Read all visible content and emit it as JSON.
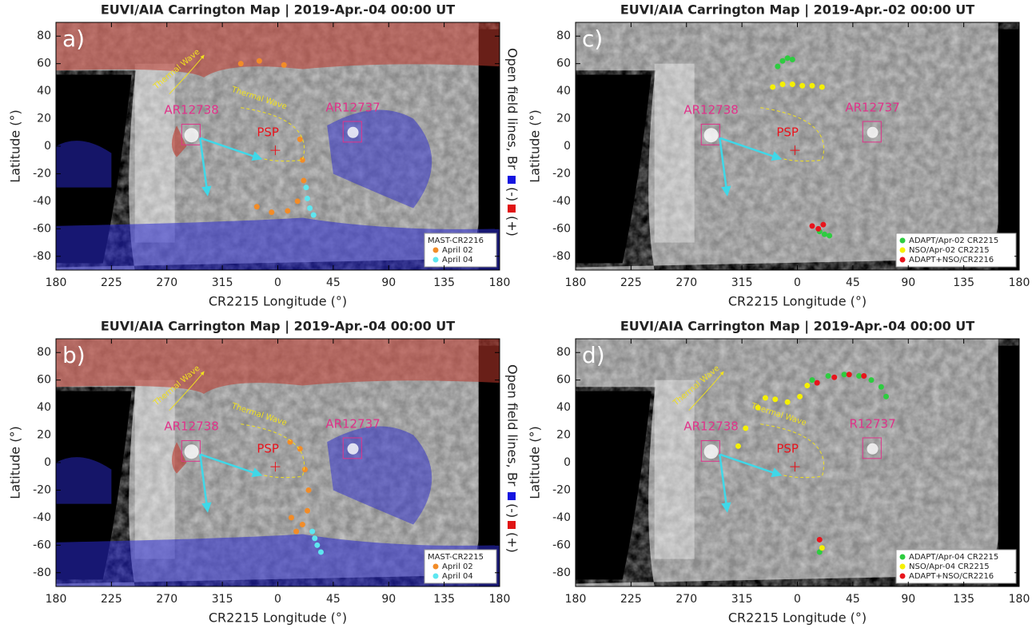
{
  "chart_data": [
    {
      "type": "map",
      "title": "EUVI/AIA Carrington Map | 2019-Apr.-04 00:00 UT",
      "x_label": "CR2215 Longitude (°)",
      "y_label": "Latitude (°)",
      "xlim": [
        180,
        540
      ],
      "ylim": [
        -90,
        90
      ],
      "xticks": [
        180,
        225,
        270,
        315,
        {
          "value": 360,
          "label": "0"
        },
        {
          "value": 405,
          "label": "45"
        },
        {
          "value": 450,
          "label": "90"
        },
        {
          "value": 495,
          "label": "135"
        },
        {
          "value": 540,
          "label": "180"
        }
      ],
      "yticks": [
        -80,
        -60,
        -40,
        -20,
        0,
        20,
        40,
        60,
        80
      ],
      "open_field_overlay": true,
      "side_label": "Open field lines, Br",
      "side_neg": "(-)",
      "side_pos": "(+)",
      "annotations": {
        "panel_label": "a)",
        "ar_left": "AR12738",
        "ar_right": "AR12737",
        "psp": "PSP",
        "wave_1": "Thermal Wave",
        "wave_2": "Thermal Wave"
      },
      "legend_title": "MAST-CR2216",
      "legend_loc": "lower right",
      "series": [
        {
          "name": "April 02",
          "color": "#f28c28",
          "x": [
            330,
            345,
            365,
            378,
            380,
            381,
            376,
            368,
            355,
            343
          ],
          "y": [
            60,
            62,
            59,
            5,
            -10,
            -25,
            -40,
            -47,
            -48,
            -44
          ]
        },
        {
          "name": "April 04",
          "color": "#5ee6f0",
          "x": [
            383,
            384,
            386,
            389
          ],
          "y": [
            -30,
            -38,
            -45,
            -50
          ]
        }
      ]
    },
    {
      "type": "map",
      "title": "EUVI/AIA Carrington Map | 2019-Apr.-04 00:00 UT",
      "x_label": "CR2215 Longitude (°)",
      "y_label": "Latitude (°)",
      "xlim": [
        180,
        540
      ],
      "ylim": [
        -90,
        90
      ],
      "xticks": [
        180,
        225,
        270,
        315,
        {
          "value": 360,
          "label": "0"
        },
        {
          "value": 405,
          "label": "45"
        },
        {
          "value": 450,
          "label": "90"
        },
        {
          "value": 495,
          "label": "135"
        },
        {
          "value": 540,
          "label": "180"
        }
      ],
      "yticks": [
        -80,
        -60,
        -40,
        -20,
        0,
        20,
        40,
        60,
        80
      ],
      "open_field_overlay": true,
      "side_label": "Open field lines, Br",
      "side_neg": "(-)",
      "side_pos": "(+)",
      "annotations": {
        "panel_label": "b)",
        "ar_left": "AR12738",
        "ar_right": "AR12737",
        "psp": "PSP",
        "wave_1": "Thermal Wave",
        "wave_2": "Thermal Wave"
      },
      "legend_title": "MAST-CR2215",
      "legend_loc": "lower right",
      "series": [
        {
          "name": "April 02",
          "color": "#f28c28",
          "x": [
            370,
            378,
            382,
            385,
            384,
            380,
            375,
            371
          ],
          "y": [
            15,
            10,
            -5,
            -20,
            -35,
            -45,
            -50,
            -40
          ]
        },
        {
          "name": "April 04",
          "color": "#5ee6f0",
          "x": [
            388,
            390,
            392,
            395
          ],
          "y": [
            -50,
            -55,
            -60,
            -65
          ]
        }
      ]
    },
    {
      "type": "map",
      "title": "EUVI/AIA Carrington Map | 2019-Apr.-02 00:00 UT",
      "x_label": "CR2215 Longitude (°)",
      "y_label": "Latitude (°)",
      "xlim": [
        180,
        540
      ],
      "ylim": [
        -90,
        90
      ],
      "xticks": [
        180,
        225,
        270,
        315,
        {
          "value": 360,
          "label": "0"
        },
        {
          "value": 405,
          "label": "45"
        },
        {
          "value": 450,
          "label": "90"
        },
        {
          "value": 495,
          "label": "135"
        },
        {
          "value": 540,
          "label": "180"
        }
      ],
      "yticks": [
        -80,
        -60,
        -40,
        -20,
        0,
        20,
        40,
        60,
        80
      ],
      "open_field_overlay": false,
      "annotations": {
        "panel_label": "c)",
        "ar_left": "AR12738",
        "ar_right": "AR12737",
        "psp": "PSP"
      },
      "legend_loc": "lower right",
      "series": [
        {
          "name": "ADAPT/Apr-02 CR2215",
          "color": "#2ecc40",
          "x": [
            344,
            348,
            352,
            356,
            378,
            382,
            386
          ],
          "y": [
            58,
            62,
            64,
            63,
            -62,
            -64,
            -65
          ]
        },
        {
          "name": "NSO/Apr-02 CR2215",
          "color": "#f5f000",
          "x": [
            340,
            348,
            356,
            364,
            372,
            380
          ],
          "y": [
            43,
            45,
            45,
            44,
            44,
            43
          ]
        },
        {
          "name": "ADAPT+NSO/CR2216",
          "color": "#e8141c",
          "x": [
            372,
            377,
            381
          ],
          "y": [
            -58,
            -60,
            -57
          ]
        }
      ]
    },
    {
      "type": "map",
      "title": "EUVI/AIA Carrington Map | 2019-Apr.-04 00:00 UT",
      "x_label": "CR2215 Longitude (°)",
      "y_label": "Latitude (°)",
      "xlim": [
        180,
        540
      ],
      "ylim": [
        -90,
        90
      ],
      "xticks": [
        180,
        225,
        270,
        315,
        {
          "value": 360,
          "label": "0"
        },
        {
          "value": 405,
          "label": "45"
        },
        {
          "value": 450,
          "label": "90"
        },
        {
          "value": 495,
          "label": "135"
        },
        {
          "value": 540,
          "label": "180"
        }
      ],
      "yticks": [
        -80,
        -60,
        -40,
        -20,
        0,
        20,
        40,
        60,
        80
      ],
      "open_field_overlay": false,
      "annotations": {
        "panel_label": "d)",
        "ar_left": "AR12738",
        "ar_right": "R12737",
        "psp": "PSP",
        "wave_1": "Thermal Wave",
        "wave_2": "Thermal Wave"
      },
      "legend_loc": "lower right",
      "series": [
        {
          "name": "ADAPT/Apr-04 CR2215",
          "color": "#2ecc40",
          "x": [
            372,
            385,
            398,
            410,
            420,
            428,
            432,
            378
          ],
          "y": [
            60,
            63,
            64,
            63,
            60,
            55,
            48,
            -65
          ]
        },
        {
          "name": "NSO/Apr-04 CR2215",
          "color": "#f5f000",
          "x": [
            328,
            334,
            342,
            352,
            362,
            368,
            318,
            312,
            380
          ],
          "y": [
            40,
            47,
            46,
            44,
            48,
            56,
            25,
            12,
            -62
          ]
        },
        {
          "name": "ADAPT+NSO/CR2216",
          "color": "#e8141c",
          "x": [
            376,
            390,
            402,
            414,
            378
          ],
          "y": [
            58,
            62,
            64,
            63,
            -56
          ]
        }
      ]
    }
  ]
}
